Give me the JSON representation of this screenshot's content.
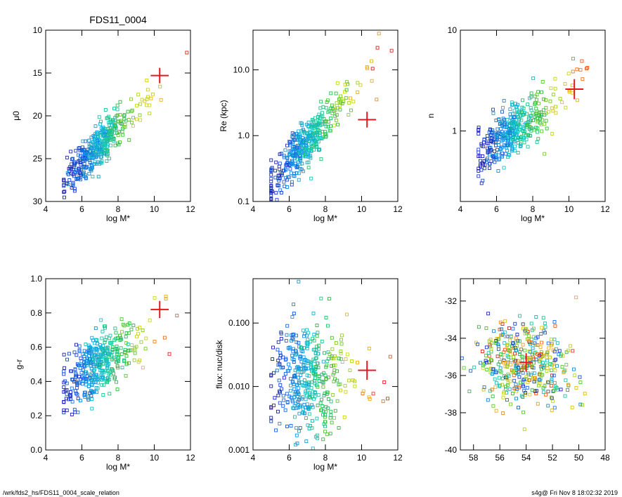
{
  "title": "FDS11_0004",
  "footer": {
    "path": "/wrk/fds2_hs/FDS11_0004_scale_relation",
    "stamp": "s4g@  Fri Nov  8 18:02:32 2019"
  },
  "colors": {
    "axis": "#000000",
    "highlight": "#e11b1b",
    "scale_low": "#1d1db8",
    "scale_high": "#e11b1b"
  },
  "chart_data": [
    {
      "type": "scatter",
      "panel": "mu0",
      "xlabel": "log M*",
      "ylabel": "μ0",
      "xlim": [
        4,
        12
      ],
      "ylim": [
        30,
        10
      ],
      "yscale": "linear",
      "y_inverted": true,
      "xticks": [
        "4",
        "6",
        "8",
        "10",
        "12"
      ],
      "yticks": [
        "10",
        "15",
        "20",
        "25",
        "30"
      ],
      "highlight": {
        "x": 10.3,
        "y": 15.3,
        "xerr": 0.5,
        "yerr": 0.9
      },
      "seed": 11,
      "points_description_free": true
    },
    {
      "type": "scatter",
      "panel": "re",
      "xlabel": "log M*",
      "ylabel": "Re (kpc)",
      "xlim": [
        4,
        12
      ],
      "ylim": [
        0.1,
        40
      ],
      "yscale": "log",
      "xticks": [
        "4",
        "6",
        "8",
        "10",
        "12"
      ],
      "yticks": [
        "0.1",
        "1.0",
        "10.0"
      ],
      "highlight": {
        "x": 10.3,
        "y": 1.75,
        "xerr": 0.5,
        "yerr_log": 0.12
      },
      "seed": 23
    },
    {
      "type": "scatter",
      "panel": "n",
      "xlabel": "log M*",
      "ylabel": "n",
      "xlim": [
        4,
        12
      ],
      "ylim": [
        0.2,
        10
      ],
      "yscale": "log",
      "xticks": [
        "4",
        "6",
        "8",
        "10",
        "12"
      ],
      "yticks": [
        "1",
        "10"
      ],
      "highlight": {
        "x": 10.3,
        "y": 2.6,
        "xerr": 0.5,
        "yerr_log": 0.1
      },
      "seed": 37
    },
    {
      "type": "scatter",
      "panel": "gr",
      "xlabel": "log M*",
      "ylabel": "g-r",
      "xlim": [
        4,
        12
      ],
      "ylim": [
        0,
        1
      ],
      "yscale": "linear",
      "xticks": [
        "4",
        "6",
        "8",
        "10",
        "12"
      ],
      "yticks": [
        "0.0",
        "0.2",
        "0.4",
        "0.6",
        "0.8",
        "1.0"
      ],
      "highlight": {
        "x": 10.3,
        "y": 0.82,
        "xerr": 0.5,
        "yerr": 0.05
      },
      "seed": 51
    },
    {
      "type": "scatter",
      "panel": "flux",
      "xlabel": "log M*",
      "ylabel": "flux: nuc/disk",
      "xlim": [
        4,
        12
      ],
      "ylim": [
        0.001,
        0.5
      ],
      "yscale": "log",
      "xticks": [
        "4",
        "6",
        "8",
        "10",
        "12"
      ],
      "yticks": [
        "0.001",
        "0.010",
        "0.100"
      ],
      "highlight": {
        "x": 10.3,
        "y": 0.018,
        "xerr": 0.5,
        "yerr_log": 0.15
      },
      "seed": 67
    },
    {
      "type": "scatter",
      "panel": "pos",
      "xlabel": "",
      "ylabel": "",
      "xlim": [
        59,
        48
      ],
      "ylim": [
        -40,
        -30.8
      ],
      "yscale": "linear",
      "xticks": [
        "58",
        "56",
        "54",
        "52",
        "50",
        "48"
      ],
      "yticks": [
        "-40",
        "-38",
        "-36",
        "-34",
        "-32"
      ],
      "highlight": {
        "x": 54.0,
        "y": -35.3,
        "xerr": 0.5,
        "yerr": 0.5
      },
      "seed": 83
    }
  ]
}
